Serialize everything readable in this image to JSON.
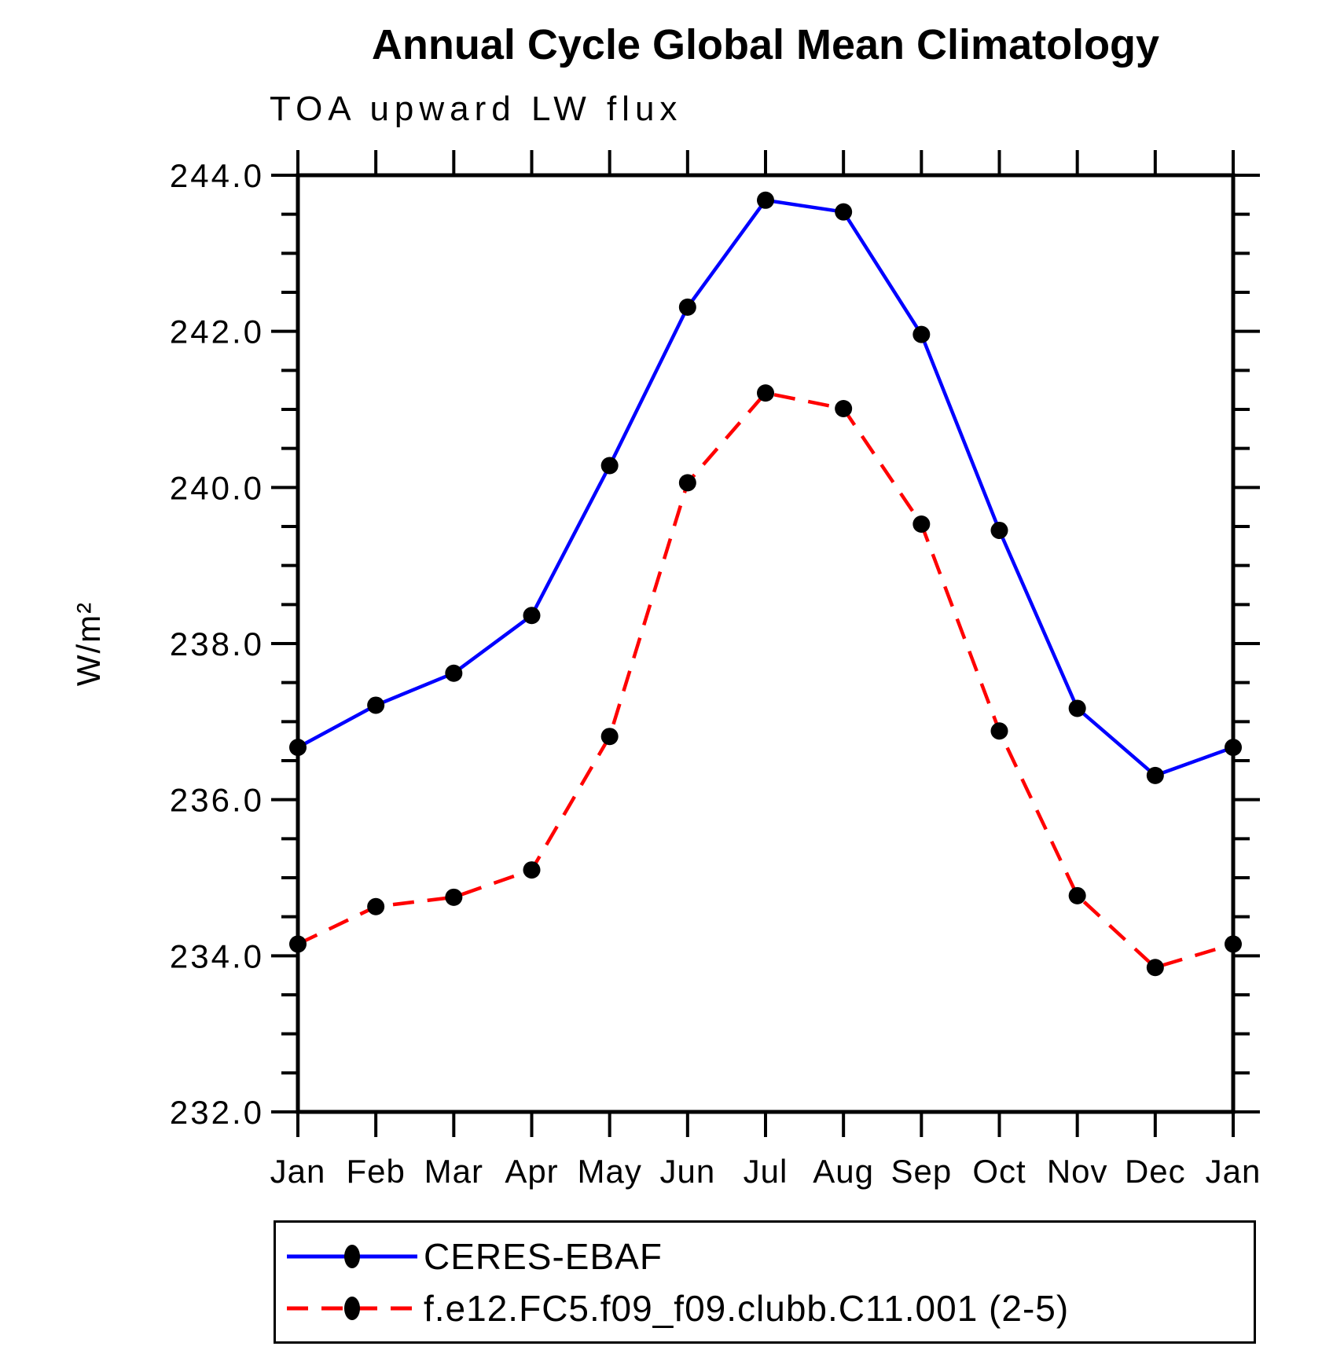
{
  "page": {
    "background": "#ffffff",
    "text_color": "#000000"
  },
  "chart_data": {
    "type": "line",
    "title": "Annual Cycle Global Mean Climatology",
    "subtitle": "TOA upward LW flux",
    "ylabel": "W/m²",
    "xlabel": "",
    "categories": [
      "Jan",
      "Feb",
      "Mar",
      "Apr",
      "May",
      "Jun",
      "Jul",
      "Aug",
      "Sep",
      "Oct",
      "Nov",
      "Dec",
      "Jan"
    ],
    "ylim": [
      232.0,
      244.0
    ],
    "y_major_step": 2.0,
    "y_minor_step": 0.5,
    "y_tick_labels": [
      "244.0",
      "242.0",
      "240.0",
      "238.0",
      "236.0",
      "234.0",
      "232.0"
    ],
    "grid": false,
    "axis_color": "#000000",
    "marker_color": "#000000",
    "legend_position": "bottom",
    "series": [
      {
        "name": "CERES-EBAF",
        "color": "#0000ff",
        "style": "solid",
        "marker": "filled-black-dot",
        "values": [
          236.67,
          237.21,
          237.62,
          238.36,
          240.28,
          242.31,
          243.68,
          243.53,
          241.96,
          239.45,
          237.17,
          236.31,
          236.67
        ]
      },
      {
        "name": "f.e12.FC5.f09_f09.clubb.C11.001 (2-5)",
        "color": "#ff0000",
        "style": "dashed",
        "marker": "filled-black-dot",
        "values": [
          234.15,
          234.63,
          234.75,
          235.1,
          236.81,
          240.06,
          241.21,
          241.01,
          239.53,
          236.88,
          234.77,
          233.85,
          234.15
        ]
      }
    ]
  }
}
